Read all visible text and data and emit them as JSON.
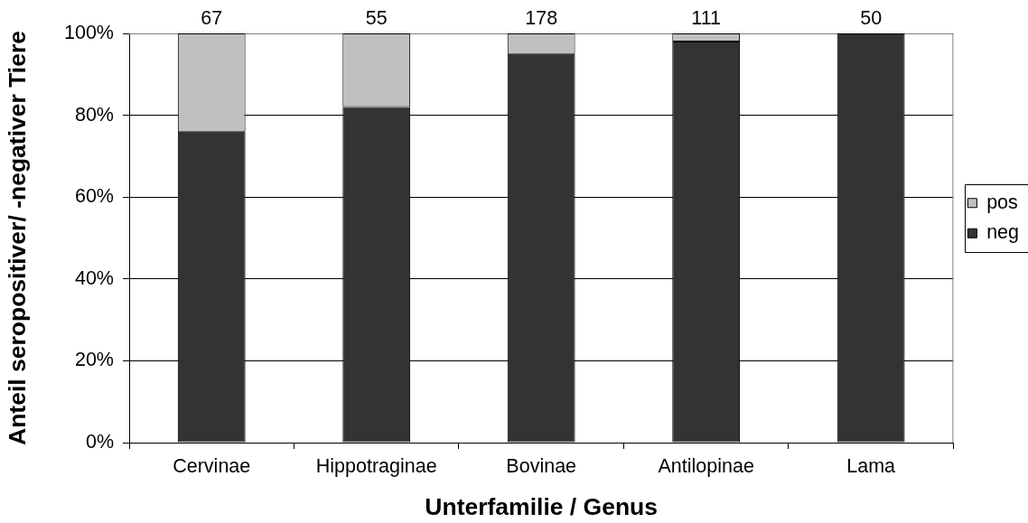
{
  "chart_data": {
    "type": "bar",
    "stacked": true,
    "xlabel": "Unterfamilie / Genus",
    "ylabel": "Anteil seropositiver/ -negativer Tiere",
    "categories": [
      "Cervinae",
      "Hippotraginae",
      "Bovinae",
      "Antilopinae",
      "Lama"
    ],
    "series": [
      {
        "name": "neg",
        "color": "#333333",
        "values": [
          76,
          82,
          95,
          98,
          100
        ]
      },
      {
        "name": "pos",
        "color": "#c0c0c0",
        "values": [
          24,
          18,
          5,
          2,
          0
        ]
      }
    ],
    "ylim": [
      0,
      100
    ],
    "yticks": [
      {
        "value": 0,
        "label": "0%"
      },
      {
        "value": 20,
        "label": "20%"
      },
      {
        "value": 40,
        "label": "40%"
      },
      {
        "value": 60,
        "label": "60%"
      },
      {
        "value": 80,
        "label": "80%"
      },
      {
        "value": 100,
        "label": "100%"
      }
    ],
    "annotations": [
      {
        "text": "67",
        "x": "Cervinae",
        "y": 100
      },
      {
        "text": "55",
        "x": "Hippotraginae",
        "y": 100
      },
      {
        "text": "178",
        "x": "Bovinae",
        "y": 100
      },
      {
        "text": "111",
        "x": "Antilopinae",
        "y": 100
      },
      {
        "text": "50",
        "x": "Lama",
        "y": 100
      }
    ],
    "grid": "y",
    "legend": "right"
  }
}
